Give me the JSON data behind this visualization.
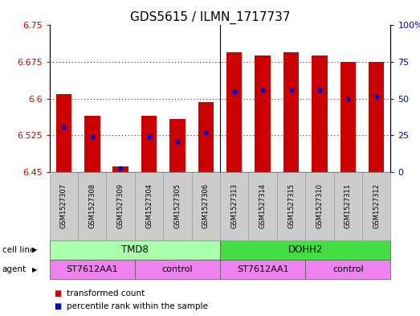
{
  "title": "GDS5615 / ILMN_1717737",
  "samples": [
    "GSM1527307",
    "GSM1527308",
    "GSM1527309",
    "GSM1527304",
    "GSM1527305",
    "GSM1527306",
    "GSM1527313",
    "GSM1527314",
    "GSM1527315",
    "GSM1527310",
    "GSM1527311",
    "GSM1527312"
  ],
  "bar_values": [
    6.61,
    6.565,
    6.462,
    6.565,
    6.558,
    6.593,
    6.695,
    6.688,
    6.695,
    6.688,
    6.675,
    6.675
  ],
  "dot_values": [
    6.542,
    6.523,
    6.458,
    6.523,
    6.513,
    6.53,
    6.615,
    6.618,
    6.618,
    6.618,
    6.6,
    6.605
  ],
  "bar_bottom": 6.45,
  "ylim_left": [
    6.45,
    6.75
  ],
  "ylim_right": [
    0,
    100
  ],
  "yticks_left": [
    6.45,
    6.525,
    6.6,
    6.675,
    6.75
  ],
  "yticks_right": [
    0,
    25,
    50,
    75,
    100
  ],
  "ytick_labels_left": [
    "6.45",
    "6.525",
    "6.6",
    "6.675",
    "6.75"
  ],
  "ytick_labels_right": [
    "0",
    "25",
    "50",
    "75",
    "100%"
  ],
  "grid_yticks": [
    6.525,
    6.6,
    6.675
  ],
  "bar_color": "#cc0000",
  "dot_color": "#0000cc",
  "bar_width": 0.55,
  "cell_line_groups": [
    {
      "label": "TMD8",
      "start": 0,
      "end": 6,
      "color": "#aaffaa"
    },
    {
      "label": "DOHH2",
      "start": 6,
      "end": 12,
      "color": "#44dd44"
    }
  ],
  "agent_group_defs": [
    {
      "label": "ST7612AA1",
      "start": 0,
      "end": 3,
      "color": "#ee82ee"
    },
    {
      "label": "control",
      "start": 3,
      "end": 6,
      "color": "#ee82ee"
    },
    {
      "label": "ST7612AA1",
      "start": 6,
      "end": 9,
      "color": "#ee82ee"
    },
    {
      "label": "control",
      "start": 9,
      "end": 12,
      "color": "#ee82ee"
    }
  ],
  "legend_items": [
    {
      "label": "transformed count",
      "color": "#cc0000"
    },
    {
      "label": "percentile rank within the sample",
      "color": "#0000cc"
    }
  ],
  "cell_line_label": "cell line",
  "agent_label": "agent",
  "background_color": "#ffffff",
  "plot_bg_color": "#ffffff",
  "grid_color": "#000000",
  "tick_color_left": "#cc0000",
  "tick_color_right": "#0000cc",
  "sample_box_color": "#cccccc",
  "title_fontsize": 11
}
